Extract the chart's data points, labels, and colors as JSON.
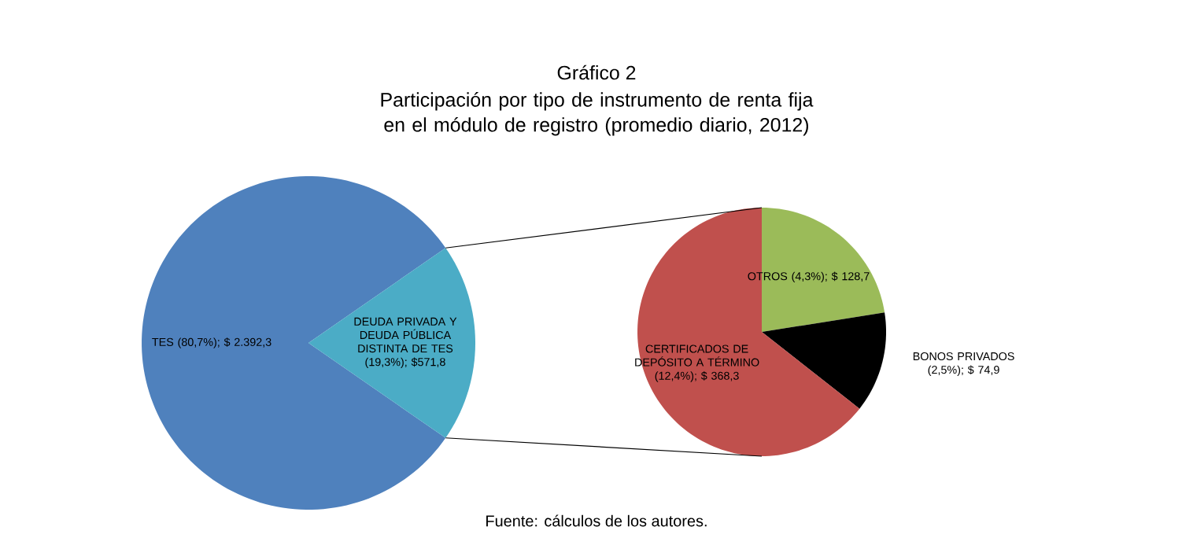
{
  "chart_data": [
    {
      "type": "pie",
      "title": "Gráfico 2",
      "subtitle": "Participación por tipo de instrumento de renta fija en el módulo de registro (promedio diario, 2012)",
      "categories": [
        "TES (80,7%); $ 2.392,3",
        "DEUDA PRIVADA Y DEUDA PÚBLICA DISTINTA DE TES (19,3%); $571,8"
      ],
      "values": [
        2392.3,
        571.8
      ],
      "colors": [
        "#4f81bd",
        "#4bacc6"
      ],
      "annotations": [
        "Fuente: cálculos de los autores."
      ]
    },
    {
      "type": "pie",
      "categories": [
        "OTROS (4,3%); $ 128,7",
        "BONOS PRIVADOS (2,5%); $ 74,9",
        "CERTIFICADOS DE DEPÓSITO A TÉRMINO (12,4%); $ 368,3"
      ],
      "values": [
        128.7,
        74.9,
        368.3
      ],
      "colors": [
        "#9bbb59",
        "#000000",
        "#c0504d"
      ]
    }
  ]
}
